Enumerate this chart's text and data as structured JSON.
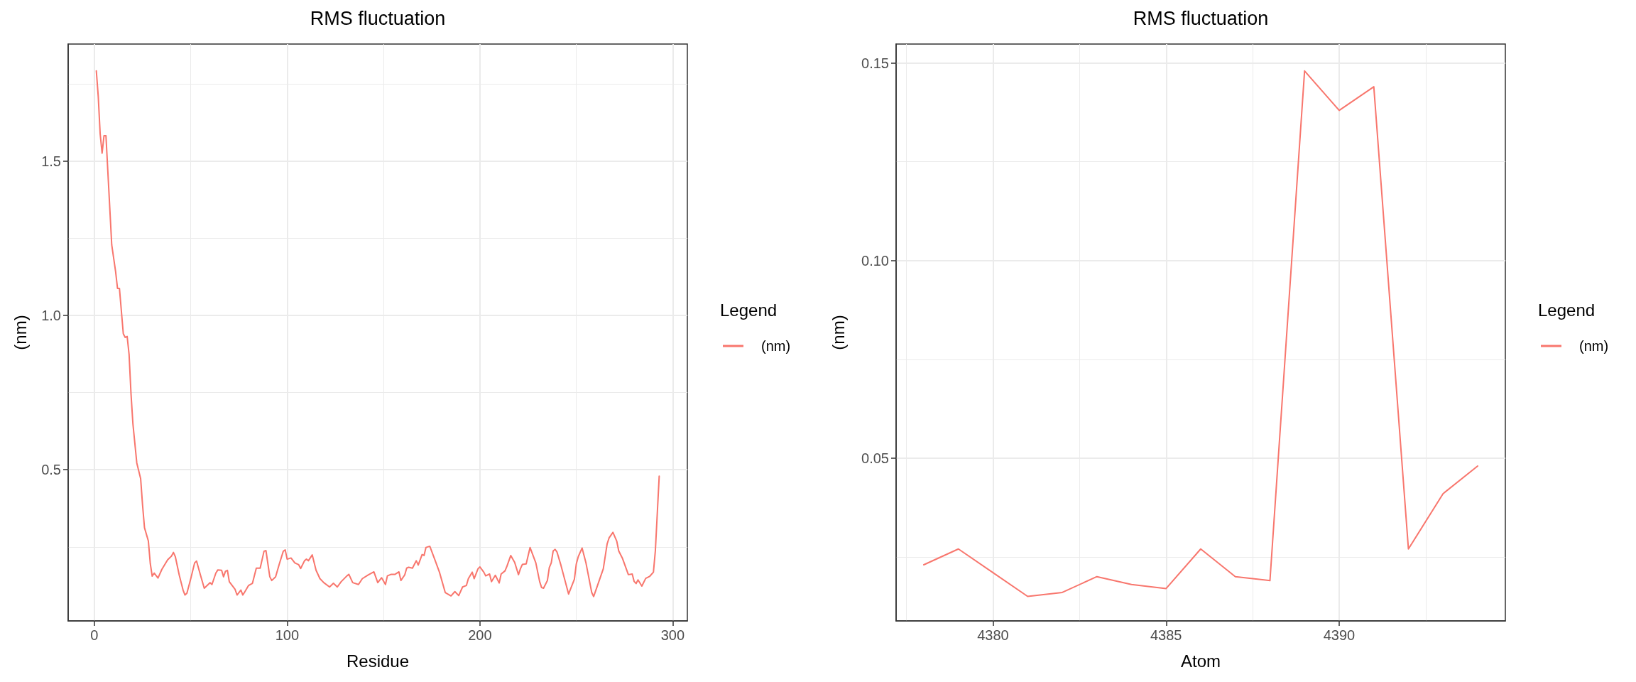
{
  "chart_data": [
    {
      "type": "line",
      "title": "RMS fluctuation",
      "xlabel": "Residue",
      "ylabel": "(nm)",
      "legend_title": "Legend",
      "legend": "right",
      "grid": true,
      "xlim": [
        -13.6,
        307.6
      ],
      "ylim": [
        0.01,
        1.88
      ],
      "xticks": [
        0,
        100,
        200,
        300
      ],
      "yticks": [
        0.5,
        {
          "value": 1,
          "label": "1.0"
        },
        1.5
      ],
      "x": [
        1,
        2,
        3,
        4,
        5,
        6,
        9,
        11,
        12,
        13,
        15,
        16,
        17,
        18,
        19,
        20,
        22,
        24,
        25,
        26,
        28,
        29,
        30,
        31,
        33,
        35,
        38,
        40,
        41,
        42,
        44,
        46,
        47,
        48,
        50,
        52,
        53,
        55,
        57,
        60,
        61,
        63,
        64,
        66,
        67,
        68,
        69,
        70,
        73,
        74,
        76,
        77,
        78,
        80,
        82,
        84,
        86,
        88,
        89,
        91,
        92,
        94,
        96,
        98,
        99,
        100,
        102,
        104,
        106,
        107,
        109,
        110,
        111,
        113,
        115,
        117,
        119,
        122,
        124,
        126,
        128,
        131,
        132,
        134,
        137,
        139,
        142,
        145,
        147,
        149,
        151,
        152,
        154,
        156,
        158,
        159,
        161,
        162,
        163,
        165,
        167,
        168,
        170,
        171,
        172,
        174,
        177,
        179,
        182,
        185,
        187,
        189,
        191,
        193,
        194,
        196,
        197,
        199,
        200,
        202,
        203,
        205,
        206,
        208,
        210,
        211,
        213,
        214,
        216,
        218,
        220,
        221,
        222,
        224,
        226,
        229,
        231,
        232,
        233,
        235,
        236,
        237,
        238,
        239,
        240,
        242,
        246,
        249,
        250,
        251,
        253,
        255,
        258,
        259,
        261,
        264,
        266,
        267,
        269,
        271,
        272,
        274,
        277,
        279,
        280,
        281,
        282,
        284,
        286,
        288,
        290,
        291,
        293
      ],
      "series": [
        {
          "name": "(nm)",
          "color": "#f8766d",
          "values": [
            1.793,
            1.711,
            1.589,
            1.526,
            1.583,
            1.583,
            1.229,
            1.143,
            1.088,
            1.088,
            0.941,
            0.929,
            0.932,
            0.874,
            0.746,
            0.648,
            0.522,
            0.471,
            0.385,
            0.312,
            0.269,
            0.196,
            0.155,
            0.165,
            0.149,
            0.177,
            0.208,
            0.22,
            0.232,
            0.218,
            0.159,
            0.11,
            0.094,
            0.1,
            0.147,
            0.198,
            0.204,
            0.159,
            0.116,
            0.134,
            0.128,
            0.165,
            0.175,
            0.174,
            0.153,
            0.171,
            0.174,
            0.137,
            0.112,
            0.094,
            0.11,
            0.094,
            0.104,
            0.125,
            0.132,
            0.181,
            0.181,
            0.236,
            0.238,
            0.153,
            0.141,
            0.153,
            0.196,
            0.236,
            0.24,
            0.21,
            0.214,
            0.198,
            0.192,
            0.18,
            0.205,
            0.21,
            0.205,
            0.224,
            0.174,
            0.147,
            0.134,
            0.12,
            0.132,
            0.12,
            0.137,
            0.156,
            0.161,
            0.134,
            0.128,
            0.147,
            0.159,
            0.169,
            0.134,
            0.15,
            0.128,
            0.156,
            0.161,
            0.161,
            0.169,
            0.141,
            0.159,
            0.181,
            0.184,
            0.181,
            0.205,
            0.191,
            0.225,
            0.222,
            0.248,
            0.252,
            0.202,
            0.168,
            0.102,
            0.091,
            0.105,
            0.092,
            0.12,
            0.125,
            0.147,
            0.168,
            0.147,
            0.179,
            0.185,
            0.168,
            0.156,
            0.162,
            0.137,
            0.158,
            0.133,
            0.162,
            0.172,
            0.187,
            0.222,
            0.2,
            0.16,
            0.179,
            0.193,
            0.195,
            0.248,
            0.198,
            0.137,
            0.118,
            0.116,
            0.141,
            0.183,
            0.198,
            0.237,
            0.242,
            0.233,
            0.191,
            0.097,
            0.145,
            0.195,
            0.218,
            0.246,
            0.198,
            0.102,
            0.089,
            0.125,
            0.179,
            0.26,
            0.279,
            0.297,
            0.268,
            0.237,
            0.212,
            0.16,
            0.162,
            0.138,
            0.131,
            0.143,
            0.123,
            0.148,
            0.154,
            0.168,
            0.237,
            0.479
          ]
        }
      ]
    },
    {
      "type": "line",
      "title": "RMS fluctuation",
      "xlabel": "Atom",
      "ylabel": "(nm)",
      "legend_title": "Legend",
      "legend": "right",
      "grid": true,
      "xlim": [
        4377.2,
        4394.8
      ],
      "ylim": [
        0.0088,
        0.1548
      ],
      "xticks": [
        4380,
        4385,
        4390
      ],
      "yticks": [
        0.05,
        {
          "value": 0.1,
          "label": "0.10"
        },
        0.15
      ],
      "x": [
        4378,
        4379,
        4380,
        4381,
        4382,
        4383,
        4384,
        4385,
        4386,
        4387,
        4388,
        4389,
        4390,
        4391,
        4392,
        4393,
        4394
      ],
      "series": [
        {
          "name": "(nm)",
          "color": "#f8766d",
          "values": [
            0.023,
            0.027,
            0.021,
            0.015,
            0.016,
            0.02,
            0.018,
            0.017,
            0.027,
            0.02,
            0.019,
            0.148,
            0.138,
            0.144,
            0.027,
            0.041,
            0.048
          ]
        }
      ]
    }
  ]
}
